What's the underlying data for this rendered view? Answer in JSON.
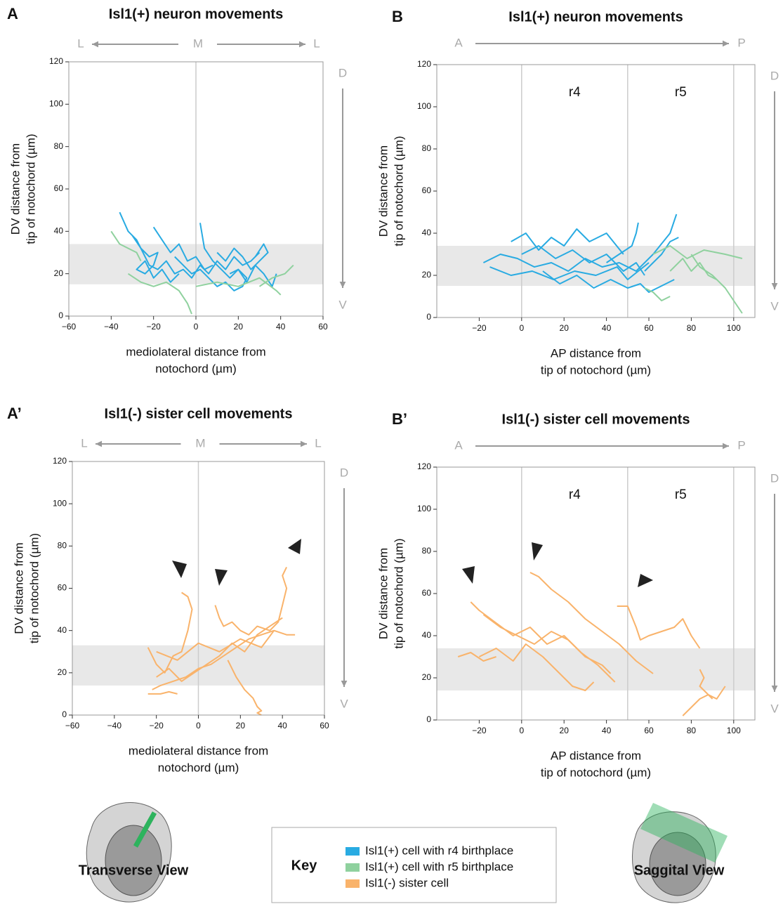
{
  "chart_data": [
    {
      "type": "line",
      "panel": "A",
      "title": "Isl1(+) neuron movements",
      "xlabel": [
        "mediolateral distance from",
        "notochord (µm)"
      ],
      "ylabel": [
        "DV distance from",
        "tip of notochord (µm)"
      ],
      "x_arrow": [
        "L",
        "M",
        "L"
      ],
      "y_arrow": [
        "D",
        "V"
      ],
      "xlim": [
        -60,
        60
      ],
      "ylim": [
        0,
        120
      ],
      "xticks": [
        {
          "value": -60,
          "label": "−60"
        },
        {
          "value": -40,
          "label": "−40"
        },
        {
          "value": -20,
          "label": "−20"
        },
        0,
        20,
        40,
        60
      ],
      "yticks": [
        0,
        20,
        40,
        60,
        80,
        100,
        120
      ],
      "band": [
        15,
        34
      ],
      "vlines": [
        0
      ],
      "series": [
        {
          "color": "#29abe2",
          "x": [
            -36,
            -32,
            -28,
            -25,
            -22,
            -18,
            -14,
            -10,
            -6,
            -2,
            2,
            6,
            10,
            14,
            18,
            22,
            26,
            30
          ],
          "values": [
            49,
            40,
            36,
            30,
            24,
            22,
            26,
            20,
            22,
            18,
            24,
            20,
            26,
            22,
            28,
            24,
            26,
            30
          ]
        },
        {
          "color": "#29abe2",
          "x": [
            -30,
            -26,
            -22,
            -18,
            -20,
            -24,
            -28,
            -24,
            -20,
            -16,
            -12,
            -8
          ],
          "values": [
            38,
            32,
            28,
            30,
            24,
            20,
            22,
            26,
            18,
            22,
            16,
            20
          ]
        },
        {
          "color": "#29abe2",
          "x": [
            2,
            4,
            8,
            12,
            16,
            20,
            24,
            28,
            32,
            36,
            38
          ],
          "values": [
            44,
            32,
            26,
            22,
            18,
            22,
            16,
            24,
            20,
            14,
            20
          ]
        },
        {
          "color": "#29abe2",
          "x": [
            -20,
            -16,
            -12,
            -8,
            -4,
            0,
            4,
            8
          ],
          "values": [
            42,
            36,
            30,
            34,
            26,
            28,
            22,
            24
          ]
        },
        {
          "color": "#29abe2",
          "x": [
            10,
            14,
            18,
            22,
            26,
            30,
            34,
            32,
            28
          ],
          "values": [
            30,
            26,
            32,
            28,
            22,
            26,
            30,
            34,
            28
          ]
        },
        {
          "color": "#29abe2",
          "x": [
            -10,
            -6,
            -2,
            2,
            6,
            10,
            14,
            18,
            22,
            24,
            20,
            16
          ],
          "values": [
            28,
            24,
            20,
            22,
            18,
            14,
            16,
            12,
            14,
            18,
            22,
            20
          ]
        },
        {
          "color": "#8fd19e",
          "x": [
            -40,
            -36,
            -32,
            -28,
            -26
          ],
          "values": [
            40,
            34,
            32,
            30,
            26
          ]
        },
        {
          "color": "#8fd19e",
          "x": [
            -32,
            -26,
            -20,
            -14,
            -8,
            -4,
            -2
          ],
          "values": [
            20,
            16,
            14,
            16,
            12,
            6,
            1
          ]
        },
        {
          "color": "#8fd19e",
          "x": [
            0,
            10,
            20,
            30,
            38,
            40
          ],
          "values": [
            14,
            16,
            14,
            18,
            12,
            10
          ]
        },
        {
          "color": "#8fd19e",
          "x": [
            30,
            36,
            42,
            46
          ],
          "values": [
            14,
            18,
            20,
            24
          ]
        }
      ]
    },
    {
      "type": "line",
      "panel": "B",
      "title": "Isl1(+) neuron movements",
      "xlabel": [
        "AP distance from",
        "tip of notochord (µm)"
      ],
      "ylabel": [
        "DV distance from",
        "tip of notochord (µm)"
      ],
      "x_arrow": [
        "A",
        "P"
      ],
      "y_arrow": [
        "D",
        "V"
      ],
      "xlim": [
        -40,
        110
      ],
      "ylim": [
        0,
        120
      ],
      "xticks": [
        {
          "value": -20,
          "label": "−20"
        },
        0,
        20,
        40,
        60,
        80,
        100
      ],
      "yticks": [
        0,
        20,
        40,
        60,
        80,
        100,
        120
      ],
      "band": [
        15,
        34
      ],
      "vlines": [
        0,
        50,
        100
      ],
      "regions": [
        {
          "label": "r4",
          "range": [
            0,
            50
          ]
        },
        {
          "label": "r5",
          "range": [
            50,
            100
          ]
        }
      ],
      "series": [
        {
          "color": "#29abe2",
          "x": [
            -18,
            -10,
            -2,
            6,
            14,
            22,
            30,
            38,
            46,
            54,
            62,
            70,
            73
          ],
          "values": [
            26,
            30,
            28,
            24,
            26,
            22,
            28,
            24,
            26,
            22,
            30,
            40,
            49
          ]
        },
        {
          "color": "#29abe2",
          "x": [
            -15,
            -5,
            5,
            15,
            25,
            35,
            45,
            50,
            55,
            60
          ],
          "values": [
            24,
            20,
            22,
            18,
            22,
            20,
            24,
            18,
            22,
            26
          ]
        },
        {
          "color": "#29abe2",
          "x": [
            0,
            8,
            16,
            24,
            32,
            40,
            48,
            54,
            58
          ],
          "values": [
            30,
            34,
            28,
            32,
            26,
            30,
            22,
            26,
            20
          ]
        },
        {
          "color": "#29abe2",
          "x": [
            10,
            18,
            26,
            34,
            42,
            50,
            56,
            60,
            64,
            68,
            72
          ],
          "values": [
            22,
            16,
            20,
            14,
            18,
            14,
            16,
            12,
            14,
            16,
            18
          ]
        },
        {
          "color": "#29abe2",
          "x": [
            -5,
            2,
            8,
            14,
            20,
            26,
            32,
            40,
            48
          ],
          "values": [
            36,
            40,
            32,
            38,
            34,
            42,
            36,
            40,
            30
          ]
        },
        {
          "color": "#29abe2",
          "x": [
            40,
            46,
            52,
            54,
            55
          ],
          "values": [
            26,
            30,
            34,
            40,
            45
          ]
        },
        {
          "color": "#29abe2",
          "x": [
            58,
            62,
            66,
            70,
            74
          ],
          "values": [
            22,
            26,
            30,
            36,
            38
          ]
        },
        {
          "color": "#8fd19e",
          "x": [
            62,
            70,
            78,
            86,
            96,
            104
          ],
          "values": [
            30,
            34,
            28,
            32,
            30,
            28
          ]
        },
        {
          "color": "#8fd19e",
          "x": [
            70,
            76,
            80,
            84,
            88,
            92
          ],
          "values": [
            22,
            28,
            22,
            26,
            20,
            18
          ]
        },
        {
          "color": "#8fd19e",
          "x": [
            80,
            84,
            90,
            96,
            100,
            104
          ],
          "values": [
            30,
            24,
            20,
            14,
            8,
            2
          ]
        },
        {
          "color": "#8fd19e",
          "x": [
            70,
            66,
            62,
            58
          ],
          "values": [
            10,
            8,
            12,
            14
          ]
        }
      ]
    },
    {
      "type": "line",
      "panel": "A’",
      "title": "Isl1(-) sister cell movements",
      "xlabel": [
        "mediolateral distance from",
        "notochord (µm)"
      ],
      "ylabel": [
        "DV distance from",
        "tip of notochord (µm)"
      ],
      "x_arrow": [
        "L",
        "M",
        "L"
      ],
      "y_arrow": [
        "D",
        "V"
      ],
      "xlim": [
        -60,
        60
      ],
      "ylim": [
        0,
        120
      ],
      "xticks": [
        {
          "value": -60,
          "label": "−60"
        },
        {
          "value": -40,
          "label": "−40"
        },
        {
          "value": -20,
          "label": "−20"
        },
        0,
        20,
        40,
        60
      ],
      "yticks": [
        0,
        20,
        40,
        60,
        80,
        100,
        120
      ],
      "band": [
        14,
        33
      ],
      "vlines": [
        0
      ],
      "series": [
        {
          "color": "#f9b36b",
          "x": [
            -24,
            -20,
            -16,
            -12,
            -8,
            -5,
            -3,
            -5,
            -8
          ],
          "values": [
            32,
            24,
            20,
            28,
            30,
            40,
            50,
            56,
            58
          ]
        },
        {
          "color": "#f9b36b",
          "x": [
            -20,
            -14,
            -8,
            -2,
            4,
            10,
            16,
            22,
            28,
            34,
            40
          ],
          "values": [
            18,
            22,
            16,
            20,
            24,
            28,
            34,
            30,
            38,
            42,
            46
          ]
        },
        {
          "color": "#f9b36b",
          "x": [
            -22,
            -18,
            -12,
            -6,
            0,
            6,
            12,
            18,
            24,
            30,
            36,
            42,
            46
          ],
          "values": [
            12,
            14,
            16,
            18,
            22,
            24,
            28,
            32,
            36,
            38,
            40,
            38,
            38
          ]
        },
        {
          "color": "#f9b36b",
          "x": [
            8,
            10,
            12,
            16,
            20,
            24,
            28,
            34,
            38,
            40,
            42,
            40,
            42
          ],
          "values": [
            52,
            46,
            42,
            44,
            40,
            38,
            42,
            40,
            44,
            52,
            60,
            66,
            70
          ]
        },
        {
          "color": "#f9b36b",
          "x": [
            14,
            18,
            22,
            26,
            28,
            30,
            28,
            30
          ],
          "values": [
            26,
            18,
            12,
            8,
            4,
            2,
            1,
            0
          ]
        },
        {
          "color": "#f9b36b",
          "x": [
            -24,
            -18,
            -14,
            -10
          ],
          "values": [
            10,
            10,
            11,
            10
          ]
        },
        {
          "color": "#f9b36b",
          "x": [
            -20,
            -10,
            0,
            10,
            20,
            30,
            36
          ],
          "values": [
            30,
            26,
            34,
            30,
            36,
            32,
            40
          ]
        }
      ]
    },
    {
      "type": "line",
      "panel": "B’",
      "title": "Isl1(-) sister cell movements",
      "xlabel": [
        "AP distance from",
        "tip of notochord (µm)"
      ],
      "ylabel": [
        "DV distance from",
        "tip of notochord (µm)"
      ],
      "x_arrow": [
        "A",
        "P"
      ],
      "y_arrow": [
        "D",
        "V"
      ],
      "xlim": [
        -40,
        110
      ],
      "ylim": [
        0,
        120
      ],
      "xticks": [
        {
          "value": -20,
          "label": "−20"
        },
        0,
        20,
        40,
        60,
        80,
        100
      ],
      "yticks": [
        0,
        20,
        40,
        60,
        80,
        100,
        120
      ],
      "band": [
        14,
        34
      ],
      "vlines": [
        0,
        50,
        100
      ],
      "regions": [
        {
          "label": "r4",
          "range": [
            0,
            50
          ]
        },
        {
          "label": "r5",
          "range": [
            50,
            100
          ]
        }
      ],
      "series": [
        {
          "color": "#f9b36b",
          "x": [
            -24,
            -20,
            -12,
            -4,
            4,
            12,
            20,
            28,
            36,
            44
          ],
          "values": [
            56,
            52,
            46,
            40,
            44,
            36,
            40,
            32,
            26,
            18
          ]
        },
        {
          "color": "#f9b36b",
          "x": [
            4,
            8,
            14,
            22,
            30,
            38,
            46,
            54,
            62
          ],
          "values": [
            70,
            68,
            62,
            56,
            48,
            42,
            36,
            28,
            22
          ]
        },
        {
          "color": "#f9b36b",
          "x": [
            -20,
            -12,
            -4,
            2,
            10,
            18,
            24,
            30,
            34
          ],
          "values": [
            30,
            34,
            28,
            36,
            30,
            22,
            16,
            14,
            18
          ]
        },
        {
          "color": "#f9b36b",
          "x": [
            -18,
            -10,
            -2,
            6,
            14,
            22,
            30,
            38,
            42
          ],
          "values": [
            50,
            44,
            40,
            36,
            42,
            38,
            30,
            26,
            22
          ]
        },
        {
          "color": "#f9b36b",
          "x": [
            45,
            50,
            54,
            56,
            60,
            66,
            72,
            76,
            80,
            84
          ],
          "values": [
            54,
            54,
            44,
            38,
            40,
            42,
            44,
            48,
            40,
            34
          ]
        },
        {
          "color": "#f9b36b",
          "x": [
            84,
            86,
            84,
            88,
            92,
            96
          ],
          "values": [
            24,
            20,
            16,
            12,
            10,
            16
          ]
        },
        {
          "color": "#f9b36b",
          "x": [
            76,
            80,
            84,
            88,
            90
          ],
          "values": [
            2,
            6,
            10,
            12,
            10
          ]
        },
        {
          "color": "#f9b36b",
          "x": [
            -30,
            -24,
            -18,
            -12
          ],
          "values": [
            30,
            32,
            28,
            30
          ]
        }
      ]
    }
  ],
  "key": {
    "title": "Key",
    "items": [
      {
        "label": "Isl1(+) cell with r4 birthplace",
        "color": "#29abe2"
      },
      {
        "label": "Isl1(+) cell with r5 birthplace",
        "color": "#8fd19e"
      },
      {
        "label": "Isl1(-) sister cell",
        "color": "#f9b36b"
      }
    ]
  },
  "views": [
    "Transverse View",
    "Saggital View"
  ]
}
